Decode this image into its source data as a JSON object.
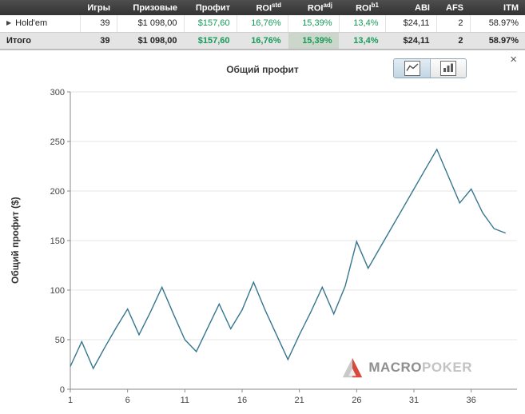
{
  "icons": {
    "expand": "▶",
    "close": "×"
  },
  "colors": {
    "positive_green": "#149b57",
    "line": "#36768f",
    "header_bg": "#3d3d3d",
    "total_row_bg": "#e4e4e4",
    "highlight_cell_bg": "#cbd7cb"
  },
  "table": {
    "headers": [
      {
        "label": "Игры"
      },
      {
        "label": "Призовые"
      },
      {
        "label": "Профит"
      },
      {
        "label": "ROI",
        "sup": "std"
      },
      {
        "label": "ROI",
        "sup": "adj"
      },
      {
        "label": "ROI",
        "sup": "b1"
      },
      {
        "label": "ABI"
      },
      {
        "label": "AFS"
      },
      {
        "label": "ITM"
      }
    ],
    "rows": [
      {
        "name": "Hold'em",
        "games": "39",
        "prizes": "$1 098,00",
        "profit": "$157,60",
        "roi_std": "16,76%",
        "roi_adj": "15,39%",
        "roi_b1": "13,4%",
        "abi": "$24,11",
        "afs": "2",
        "itm": "58.97%"
      },
      {
        "name": "Итого",
        "games": "39",
        "prizes": "$1 098,00",
        "profit": "$157,60",
        "roi_std": "16,76%",
        "roi_adj": "15,39%",
        "roi_b1": "13,4%",
        "abi": "$24,11",
        "afs": "2",
        "itm": "58.97%"
      }
    ]
  },
  "chart_data": {
    "type": "line",
    "title": "Общий профит",
    "ylabel": "Общий профит ($)",
    "x": [
      1,
      2,
      3,
      4,
      5,
      6,
      7,
      8,
      9,
      10,
      11,
      12,
      13,
      14,
      15,
      16,
      17,
      18,
      19,
      20,
      21,
      22,
      23,
      24,
      25,
      26,
      27,
      28,
      29,
      30,
      31,
      32,
      33,
      34,
      35,
      36,
      37,
      38,
      39
    ],
    "values": [
      23,
      48,
      21,
      42,
      62,
      81,
      55,
      78,
      103,
      76,
      50,
      38,
      62,
      86,
      61,
      80,
      108,
      80,
      55,
      30,
      55,
      78,
      103,
      76,
      104,
      149,
      122,
      142,
      162,
      182,
      202,
      222,
      242,
      215,
      188,
      202,
      178,
      162,
      157.6
    ],
    "xlim": [
      1,
      40
    ],
    "ylim": [
      0,
      300
    ],
    "yticks": [
      0,
      50,
      100,
      150,
      200,
      250,
      300
    ],
    "xticks": [
      1,
      6,
      11,
      16,
      21,
      26,
      31,
      36
    ],
    "grid": "horizontal",
    "legend": "none",
    "line_color": "#36768f"
  },
  "watermark": {
    "brand_primary": "MACRO",
    "brand_secondary": "POKER"
  }
}
